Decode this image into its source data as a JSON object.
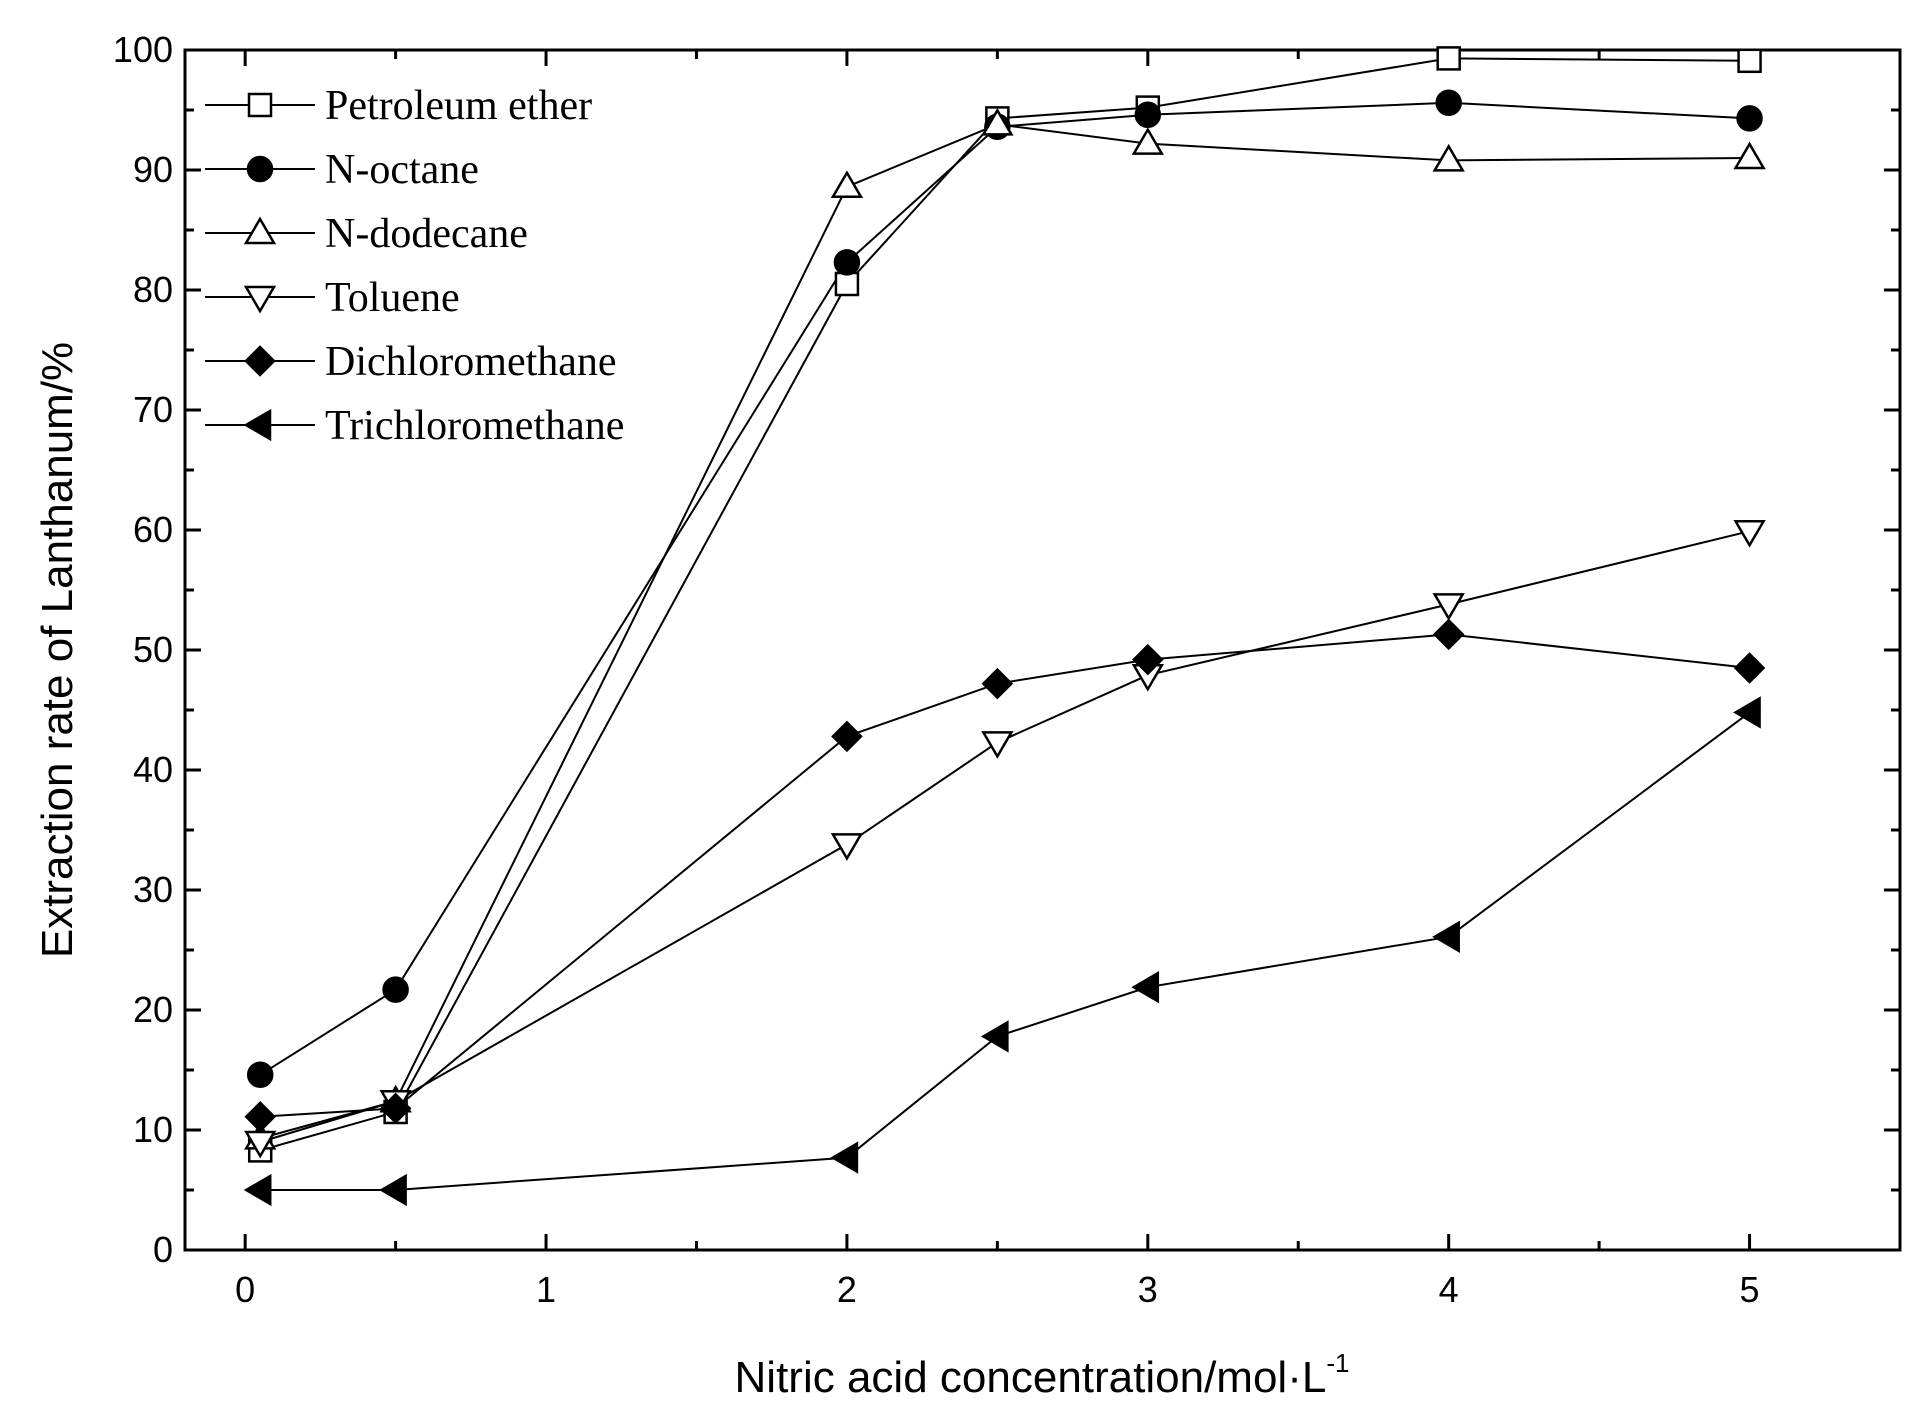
{
  "chart_data": {
    "type": "line",
    "title": "",
    "xlabel": "Nitric acid concentration/mol·L",
    "xlabel_superscript": "-1",
    "ylabel": "Extraction rate of Lanthanum/%",
    "xlim": [
      -0.2,
      5.5
    ],
    "ylim": [
      0,
      100
    ],
    "x_ticks": [
      "0",
      "1",
      "2",
      "3",
      "4",
      "5"
    ],
    "y_ticks": [
      "0",
      "10",
      "20",
      "30",
      "40",
      "50",
      "60",
      "70",
      "80",
      "90",
      "100"
    ],
    "legend_position": "top-left",
    "x": [
      0.05,
      0.5,
      2,
      2.5,
      3,
      4,
      5
    ],
    "series": [
      {
        "name": "Petroleum ether",
        "marker": "square-open",
        "values": [
          8.3,
          11.5,
          80.5,
          94.3,
          95.2,
          99.3,
          99.1
        ]
      },
      {
        "name": "N-octane",
        "marker": "circle-filled",
        "values": [
          14.6,
          21.7,
          82.3,
          93.6,
          94.6,
          95.6,
          94.3
        ]
      },
      {
        "name": "N-dodecane",
        "marker": "triangle-up-open",
        "values": [
          9.3,
          12.4,
          88.6,
          93.8,
          92.2,
          90.8,
          91.0
        ]
      },
      {
        "name": "Toluene",
        "marker": "triangle-down-open",
        "values": [
          9.0,
          12.4,
          33.8,
          42.3,
          47.9,
          53.8,
          59.9
        ]
      },
      {
        "name": "Dichloromethane",
        "marker": "diamond-filled",
        "values": [
          11.1,
          11.8,
          42.8,
          47.2,
          49.2,
          51.3,
          48.5
        ]
      },
      {
        "name": "Trichloromethane",
        "marker": "triangle-left-filled",
        "values": [
          5.0,
          5.0,
          7.7,
          17.8,
          21.9,
          26.1,
          44.8
        ]
      }
    ]
  }
}
